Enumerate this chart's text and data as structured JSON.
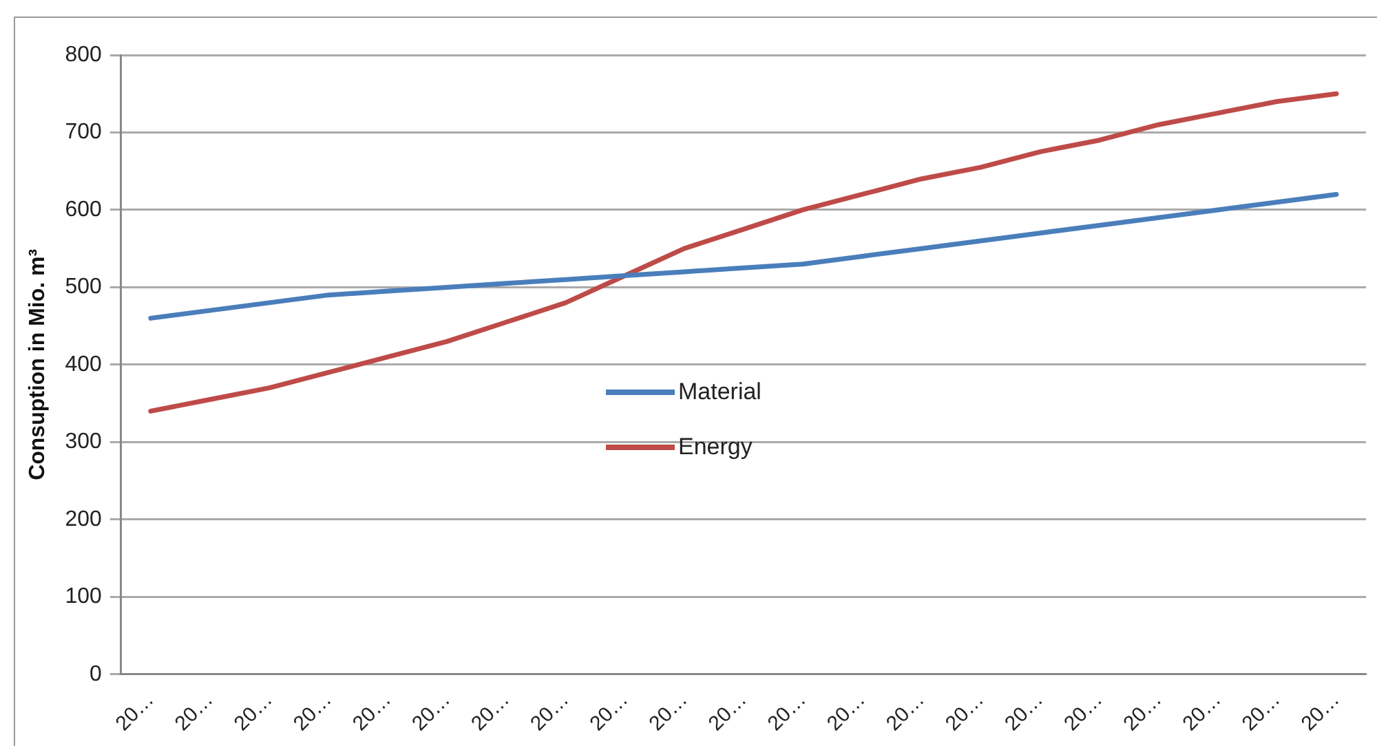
{
  "chart_data": {
    "type": "line",
    "ylabel": "Consuption in Mio. m³",
    "categories": [
      "20…",
      "20…",
      "20…",
      "20…",
      "20…",
      "20…",
      "20…",
      "20…",
      "20…",
      "20…",
      "20…",
      "20…",
      "20…",
      "20…",
      "20…",
      "20…",
      "20…",
      "20…",
      "20…",
      "20…",
      "20…"
    ],
    "series": [
      {
        "name": "Material",
        "color": "#4a7ebb",
        "values": [
          460,
          470,
          480,
          490,
          495,
          500,
          505,
          510,
          515,
          520,
          525,
          530,
          540,
          550,
          560,
          570,
          580,
          590,
          600,
          610,
          620
        ]
      },
      {
        "name": "Energy",
        "color": "#be4b48",
        "values": [
          340,
          355,
          370,
          390,
          410,
          430,
          455,
          480,
          515,
          550,
          575,
          600,
          620,
          640,
          655,
          675,
          690,
          710,
          725,
          740,
          750
        ]
      }
    ],
    "ylim": [
      0,
      800
    ],
    "yticks": [
      0,
      100,
      200,
      300,
      400,
      500,
      600,
      700,
      800
    ],
    "grid": "y",
    "legend": "center",
    "marker": "none",
    "line_style": "solid"
  }
}
